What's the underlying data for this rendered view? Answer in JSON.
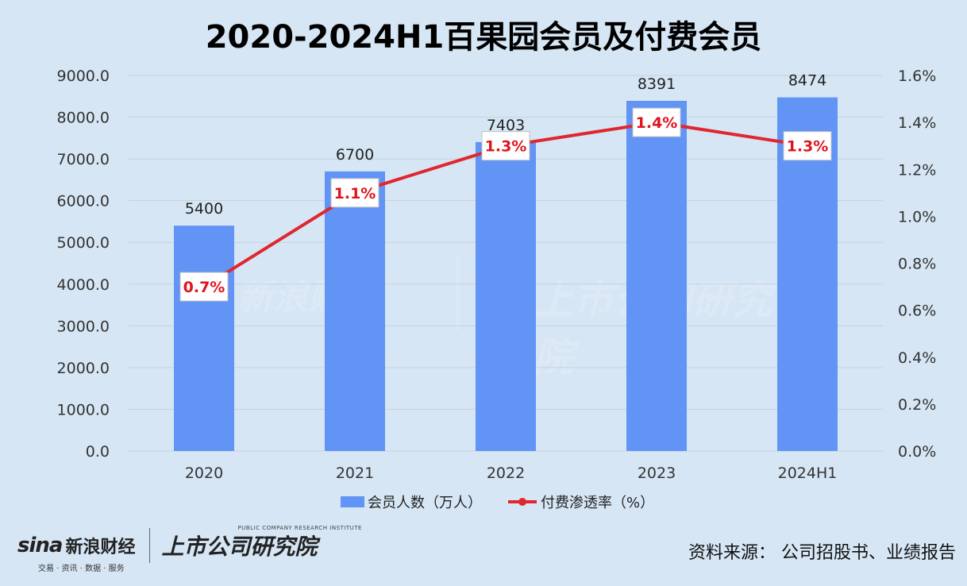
{
  "title": "2020-2024H1百果园会员及付费会员",
  "chart_data": {
    "type": "bar",
    "categories": [
      "2020",
      "2021",
      "2022",
      "2023",
      "2024H1"
    ],
    "series": [
      {
        "name": "会员人数（万人）",
        "type": "bar",
        "axis": "left",
        "values": [
          5400,
          6700,
          7403,
          8391,
          8474
        ],
        "labels": [
          "5400",
          "6700",
          "7403",
          "8391",
          "8474"
        ]
      },
      {
        "name": "付费渗透率（%）",
        "type": "line",
        "axis": "right",
        "values": [
          0.7,
          1.1,
          1.3,
          1.4,
          1.3
        ],
        "labels": [
          "0.7%",
          "1.1%",
          "1.3%",
          "1.4%",
          "1.3%"
        ]
      }
    ],
    "y_left": {
      "min": 0,
      "max": 9000,
      "ticks": [
        "0.0",
        "1000.0",
        "2000.0",
        "3000.0",
        "4000.0",
        "5000.0",
        "6000.0",
        "7000.0",
        "8000.0",
        "9000.0"
      ]
    },
    "y_right": {
      "min": 0,
      "max": 1.6,
      "ticks": [
        "0.0%",
        "0.2%",
        "0.4%",
        "0.6%",
        "0.8%",
        "1.0%",
        "1.2%",
        "1.4%",
        "1.6%"
      ]
    },
    "grid": true,
    "legend_position": "bottom",
    "colors": {
      "bar": "#6194f5",
      "line": "#e0262e",
      "label_text": "#e0141e"
    }
  },
  "footer": {
    "sina_word": "sina",
    "sina_cn": "新浪财经",
    "sina_sub": "交易 · 资讯 · 数据 · 服务",
    "institute": "上市公司研究院",
    "institute_sub": "PUBLIC COMPANY RESEARCH INSTITUTE",
    "source": "资料来源：  公司招股书、业绩报告"
  }
}
